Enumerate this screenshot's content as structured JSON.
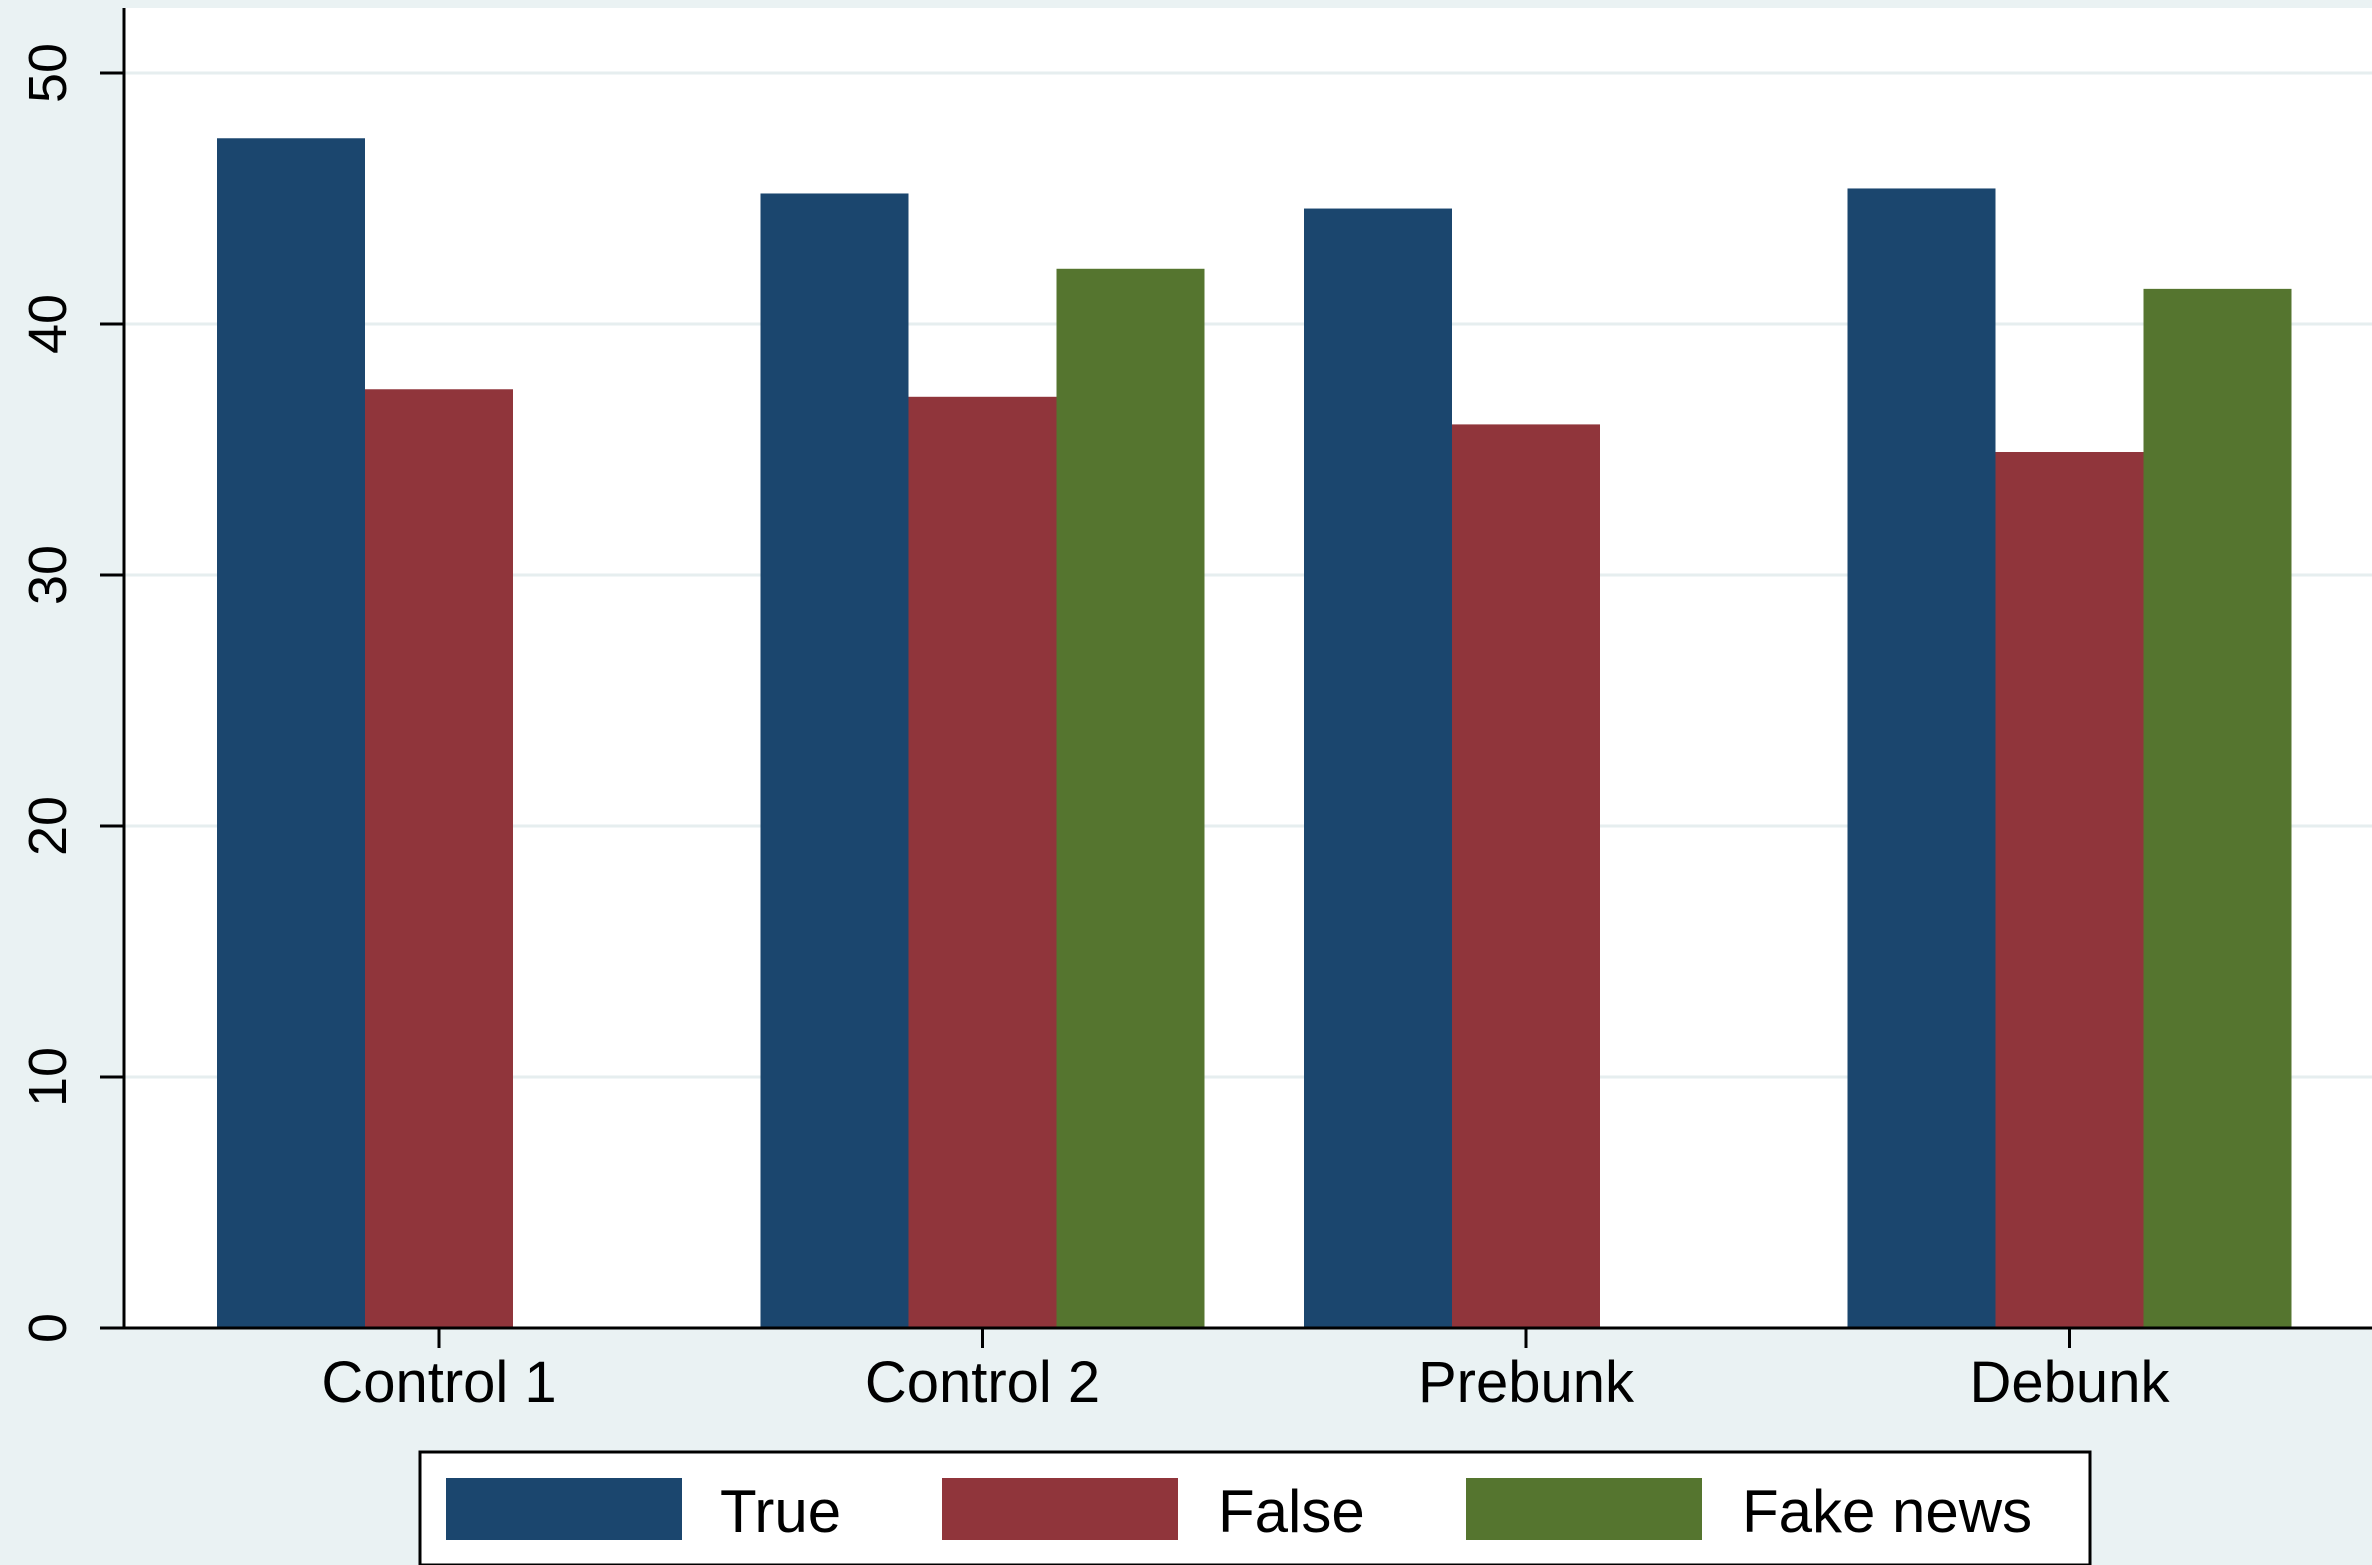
{
  "chart_data": {
    "type": "bar",
    "title": "",
    "xlabel": "",
    "ylabel": "",
    "categories": [
      "Control 1",
      "Control 2",
      "Prebunk",
      "Debunk"
    ],
    "series": [
      {
        "name": "True",
        "color": "#1b466e",
        "values": [
          47.4,
          45.2,
          44.6,
          45.4
        ]
      },
      {
        "name": "False",
        "color": "#90353b",
        "values": [
          37.4,
          37.1,
          36.0,
          34.9
        ]
      },
      {
        "name": "Fake news",
        "color": "#55752f",
        "values": [
          null,
          42.2,
          null,
          41.4
        ]
      }
    ],
    "ylim": [
      0,
      50
    ],
    "yticks": [
      0,
      10,
      20,
      30,
      40,
      50
    ],
    "grid": true,
    "legend": "bottom"
  }
}
